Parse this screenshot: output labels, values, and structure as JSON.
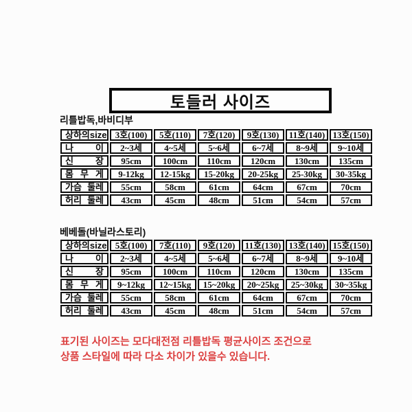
{
  "page": {
    "title": "토들러 사이즈",
    "footer_color": "#dc4040",
    "footer_lines": [
      "표기된 사이즈는 모다대전점 리틀밥독 평균사이즈 조건으로",
      "상품 스타일에 따라 다소 차이가 있을수 있습니다."
    ]
  },
  "tables": [
    {
      "label": "리틀밥독,바비디부",
      "header": [
        "상하의size",
        "3호(100)",
        "5호(110)",
        "7호(120)",
        "9호(130)",
        "11호(140)",
        "13호(150)"
      ],
      "rows": [
        [
          "나 이",
          "2~3세",
          "4~5세",
          "5~6세",
          "6~7세",
          "8~9세",
          "9~10세"
        ],
        [
          "신 장",
          "95cm",
          "100cm",
          "110cm",
          "120cm",
          "130cm",
          "135cm"
        ],
        [
          "몸 무 게",
          "9-12kg",
          "12-15kg",
          "15-20kg",
          "20-25kg",
          "25-30kg",
          "30-35kg"
        ],
        [
          "가슴 둘레",
          "55cm",
          "58cm",
          "61cm",
          "64cm",
          "67cm",
          "70cm"
        ],
        [
          "허리 둘레",
          "43cm",
          "45cm",
          "48cm",
          "51cm",
          "54cm",
          "57cm"
        ]
      ]
    },
    {
      "label": "베베돌(바닐라스토리)",
      "header": [
        "상하의size",
        "5호(100)",
        "7호(110)",
        "9호(120)",
        "11호(130)",
        "13호(140)",
        "15호(150)"
      ],
      "rows": [
        [
          "나 이",
          "2~3세",
          "4~5세",
          "5~6세",
          "6~7세",
          "8~9세",
          "9~10세"
        ],
        [
          "신 장",
          "95cm",
          "100cm",
          "110cm",
          "120cm",
          "130cm",
          "135cm"
        ],
        [
          "몸 무 게",
          "9~12kg",
          "12~15kg",
          "15~20kg",
          "20~25kg",
          "25~30kg",
          "30~35kg"
        ],
        [
          "가슴 둘레",
          "55cm",
          "58cm",
          "61cm",
          "64cm",
          "67cm",
          "70cm"
        ],
        [
          "허리 둘레",
          "43cm",
          "45cm",
          "48cm",
          "51cm",
          "54cm",
          "57cm"
        ]
      ]
    }
  ]
}
